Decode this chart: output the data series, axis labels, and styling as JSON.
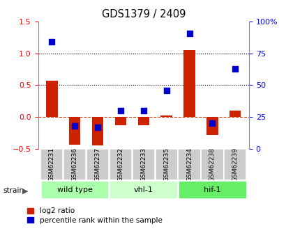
{
  "title": "GDS1379 / 2409",
  "samples": [
    "GSM62231",
    "GSM62236",
    "GSM62237",
    "GSM62232",
    "GSM62233",
    "GSM62235",
    "GSM62234",
    "GSM62238",
    "GSM62239"
  ],
  "log2_ratio": [
    0.57,
    -0.43,
    -0.45,
    -0.13,
    -0.13,
    0.02,
    1.05,
    -0.28,
    0.1
  ],
  "percentile_rank": [
    84,
    18,
    17,
    30,
    30,
    46,
    91,
    20,
    63
  ],
  "ylim_left": [
    -0.5,
    1.5
  ],
  "ylim_right": [
    0,
    100
  ],
  "yticks_left": [
    -0.5,
    0.0,
    0.5,
    1.0,
    1.5
  ],
  "yticks_right": [
    0,
    25,
    50,
    75,
    100
  ],
  "ytick_labels_right": [
    "0",
    "25",
    "50",
    "75",
    "100%"
  ],
  "hlines": [
    0.5,
    1.0
  ],
  "zero_line": 0.0,
  "groups": [
    {
      "label": "wild type",
      "start": 0,
      "end": 3,
      "color": "#aaffaa"
    },
    {
      "label": "vhl-1",
      "start": 3,
      "end": 6,
      "color": "#ccffcc"
    },
    {
      "label": "hif-1",
      "start": 6,
      "end": 9,
      "color": "#66ee66"
    }
  ],
  "bar_color": "#cc2200",
  "dot_color": "#0000cc",
  "bar_width": 0.5,
  "dot_size": 35,
  "legend_labels": [
    "log2 ratio",
    "percentile rank within the sample"
  ],
  "strain_label": "strain",
  "background_color": "#ffffff"
}
